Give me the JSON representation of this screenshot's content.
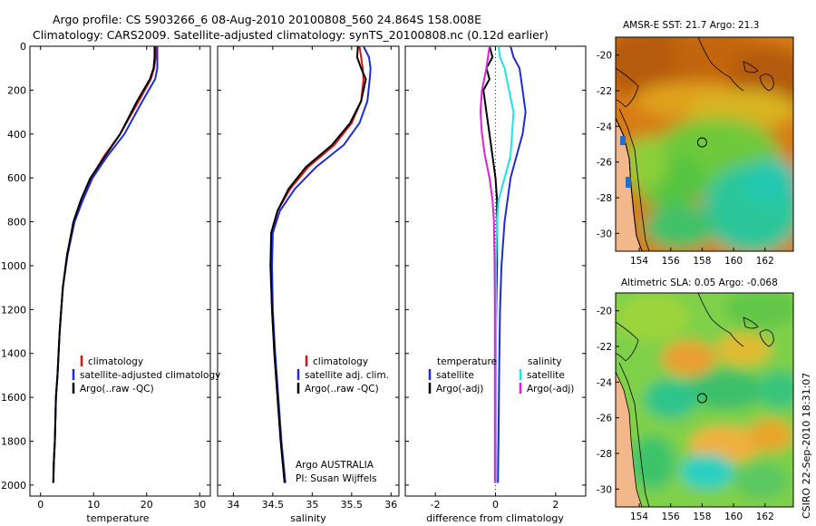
{
  "header": {
    "line1": "Argo profile: CS 5903266_6 08-Aug-2010 20100808_560 24.864S 158.008E",
    "line2": "Climatology: CARS2009. Satellite-adjusted climatology: synTS_20100808.nc (0.12d earlier)"
  },
  "side_stamp": "CSIRO 22-Sep-2010 18:31:07",
  "colors": {
    "red": "#e01010",
    "blue": "#1c2bd6",
    "black": "#000000",
    "cyan": "#19e6e6",
    "magenta": "#e020d8"
  },
  "chart_data": [
    {
      "type": "line",
      "id": "temperature",
      "xlabel": "temperature",
      "ylabel": "",
      "xlim": [
        -2,
        32
      ],
      "ylim": [
        2050,
        0
      ],
      "xticks": [
        0,
        10,
        20,
        30
      ],
      "yticks": [
        0,
        200,
        400,
        600,
        800,
        1000,
        1200,
        1400,
        1600,
        1800,
        2000
      ],
      "legend": [
        "climatology",
        "satellite-adjusted climatology",
        "Argo(..raw -QC)"
      ],
      "legend_position": "lower-center",
      "series": [
        {
          "name": "climatology",
          "color": "red",
          "x": [
            21.8,
            21.7,
            21.4,
            20.8,
            18.5,
            15.0,
            12.0,
            9.5,
            7.8,
            6.3,
            5.0,
            4.2,
            3.6,
            3.2,
            2.9,
            2.7,
            2.5,
            2.4
          ],
          "y": [
            0,
            50,
            100,
            150,
            250,
            400,
            500,
            600,
            700,
            800,
            950,
            1100,
            1300,
            1500,
            1600,
            1800,
            1900,
            1990
          ]
        },
        {
          "name": "satellite-adjusted climatology",
          "color": "blue",
          "x": [
            22.0,
            22.0,
            22.0,
            21.6,
            19.2,
            15.8,
            12.6,
            9.8,
            8.0,
            6.4,
            5.1,
            4.2,
            3.6,
            3.2,
            2.9,
            2.7,
            2.5,
            2.4
          ],
          "y": [
            0,
            50,
            100,
            150,
            250,
            400,
            500,
            600,
            700,
            800,
            950,
            1100,
            1300,
            1500,
            1600,
            1800,
            1900,
            1990
          ]
        },
        {
          "name": "Argo(..raw -QC)",
          "color": "black",
          "x": [
            21.5,
            21.5,
            21.3,
            20.6,
            18.2,
            15.0,
            12.2,
            9.4,
            7.6,
            6.2,
            5.0,
            4.2,
            3.6,
            3.2,
            2.9,
            2.7,
            2.5,
            2.4
          ],
          "y": [
            0,
            50,
            100,
            150,
            250,
            400,
            500,
            600,
            700,
            800,
            950,
            1100,
            1300,
            1500,
            1600,
            1800,
            1900,
            1990
          ]
        }
      ]
    },
    {
      "type": "line",
      "id": "salinity",
      "xlabel": "salinity",
      "ylabel": "",
      "xlim": [
        33.8,
        36.1
      ],
      "ylim": [
        2050,
        0
      ],
      "xticks": [
        34,
        34.5,
        35,
        35.5,
        36
      ],
      "legend": [
        "climatology",
        "satellite adj. clim.",
        "Argo(..raw -QC)"
      ],
      "legend_position": "lower-right",
      "annotation": [
        "Argo AUSTRALIA",
        "PI: Susan Wijffels"
      ],
      "series": [
        {
          "name": "climatology",
          "color": "red",
          "x": [
            35.6,
            35.62,
            35.64,
            35.65,
            35.62,
            35.5,
            35.28,
            34.95,
            34.72,
            34.56,
            34.49,
            34.48,
            34.49,
            34.52,
            34.56,
            34.6,
            34.65
          ],
          "y": [
            0,
            50,
            100,
            150,
            250,
            350,
            450,
            550,
            650,
            750,
            850,
            1000,
            1200,
            1400,
            1600,
            1800,
            1990
          ]
        },
        {
          "name": "satellite adj. clim.",
          "color": "blue",
          "x": [
            35.65,
            35.72,
            35.74,
            35.73,
            35.7,
            35.6,
            35.4,
            35.05,
            34.78,
            34.59,
            34.5,
            34.49,
            34.5,
            34.53,
            34.57,
            34.61,
            34.66
          ],
          "y": [
            0,
            50,
            100,
            150,
            250,
            350,
            450,
            550,
            650,
            750,
            850,
            1000,
            1200,
            1400,
            1600,
            1800,
            1990
          ]
        },
        {
          "name": "Argo(..raw -QC)",
          "color": "black",
          "x": [
            35.58,
            35.57,
            35.62,
            35.68,
            35.62,
            35.48,
            35.25,
            34.92,
            34.7,
            34.56,
            34.48,
            34.47,
            34.49,
            34.52,
            34.56,
            34.6,
            34.65
          ],
          "y": [
            0,
            50,
            100,
            150,
            250,
            350,
            450,
            550,
            650,
            750,
            850,
            1000,
            1200,
            1400,
            1600,
            1800,
            1990
          ]
        }
      ]
    },
    {
      "type": "line",
      "id": "difference",
      "xlabel": "difference from climatology",
      "ylabel": "",
      "xlim": [
        -3,
        3
      ],
      "ylim": [
        2050,
        0
      ],
      "xticks": [
        -2,
        0,
        2
      ],
      "legend_left_title": "temperature",
      "legend_right_title": "salinity",
      "legend": [
        "satellite",
        "Argo(-adj)",
        "satellite",
        "Argo(-adj)"
      ],
      "legend_position": "lower-center",
      "series": [
        {
          "name": "temperature satellite",
          "color": "blue",
          "x": [
            0.5,
            0.6,
            0.8,
            0.9,
            1.0,
            0.9,
            0.7,
            0.5,
            0.4,
            0.3,
            0.2,
            0.15,
            0.12,
            0.1,
            0.08
          ],
          "y": [
            0,
            50,
            100,
            200,
            300,
            400,
            500,
            600,
            700,
            800,
            1000,
            1200,
            1500,
            1800,
            1990
          ]
        },
        {
          "name": "temperature Argo(-adj)",
          "color": "black",
          "x": [
            -0.2,
            -0.1,
            -0.3,
            -0.2,
            -0.4,
            -0.3,
            -0.2,
            -0.1,
            0.0,
            0.05,
            0.05,
            0.05,
            0.0,
            0.0,
            0.0
          ],
          "y": [
            0,
            50,
            100,
            150,
            200,
            300,
            400,
            500,
            600,
            700,
            800,
            1000,
            1400,
            1700,
            1990
          ]
        },
        {
          "name": "salinity satellite",
          "color": "cyan",
          "x": [
            0.1,
            0.15,
            0.3,
            0.45,
            0.6,
            0.55,
            0.5,
            0.3,
            0.1,
            0.05,
            0.02,
            0.02,
            0.02,
            0.02
          ],
          "y": [
            0,
            50,
            100,
            200,
            300,
            400,
            500,
            600,
            700,
            800,
            1000,
            1200,
            1500,
            1990
          ]
        },
        {
          "name": "salinity Argo(-adj)",
          "color": "magenta",
          "x": [
            -0.2,
            -0.25,
            -0.3,
            -0.45,
            -0.5,
            -0.45,
            -0.35,
            -0.2,
            -0.1,
            -0.05,
            -0.03,
            -0.02,
            -0.02,
            -0.02
          ],
          "y": [
            0,
            50,
            100,
            200,
            300,
            400,
            500,
            600,
            700,
            800,
            1000,
            1200,
            1500,
            1990
          ]
        }
      ]
    },
    {
      "type": "heatmap",
      "id": "sst",
      "title": "AMSR-E SST: 21.7 Argo: 21.3",
      "xlim": [
        152.5,
        163.8
      ],
      "ylim": [
        -31,
        -19
      ],
      "xticks": [
        154,
        156,
        158,
        160,
        162
      ],
      "yticks": [
        -20,
        -22,
        -24,
        -26,
        -28,
        -30
      ],
      "marker": [
        158.0,
        -24.9
      ]
    },
    {
      "type": "heatmap",
      "id": "sla",
      "title": "Altimetric SLA: 0.05 Argo: -0.068",
      "xlim": [
        152.5,
        163.8
      ],
      "ylim": [
        -31,
        -19
      ],
      "xticks": [
        154,
        156,
        158,
        160,
        162
      ],
      "yticks": [
        -20,
        -22,
        -24,
        -26,
        -28,
        -30
      ],
      "marker": [
        158.0,
        -24.9
      ]
    }
  ]
}
